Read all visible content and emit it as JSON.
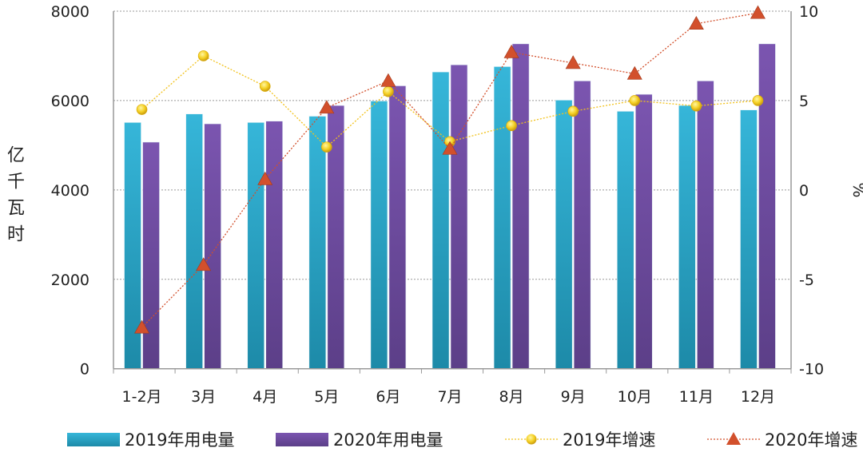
{
  "chart_data": {
    "type": "bar+line",
    "categories": [
      "1-2月",
      "3月",
      "4月",
      "5月",
      "6月",
      "7月",
      "8月",
      "9月",
      "10月",
      "11月",
      "12月"
    ],
    "ylabel": "亿千瓦时",
    "y2label": "%",
    "ylim": [
      0,
      8000
    ],
    "y2lim": [
      -10,
      10
    ],
    "yticks": [
      "0",
      "2000",
      "4000",
      "6000",
      "8000"
    ],
    "y2ticks": [
      "-10",
      "-5",
      "0",
      "5",
      "10"
    ],
    "grid": true,
    "legend_position": "bottom",
    "series": [
      {
        "name": "2019年用电量",
        "type": "bar",
        "axis": "left",
        "color": "#2aa7c9",
        "values": [
          5510,
          5700,
          5510,
          5650,
          5990,
          6640,
          6760,
          6010,
          5760,
          5890,
          5790
        ]
      },
      {
        "name": "2020年用电量",
        "type": "bar",
        "axis": "left",
        "color": "#6a4a9e",
        "values": [
          5070,
          5480,
          5540,
          5890,
          6330,
          6800,
          7270,
          6440,
          6140,
          6440,
          7270
        ]
      },
      {
        "name": "2019年增速",
        "type": "line",
        "axis": "right",
        "color": "#f2c21b",
        "marker": "circle",
        "values": [
          4.5,
          7.5,
          5.8,
          2.4,
          5.5,
          2.7,
          3.6,
          4.4,
          5.0,
          4.7,
          5.0
        ]
      },
      {
        "name": "2020年增速",
        "type": "line",
        "axis": "right",
        "color": "#d2502c",
        "marker": "triangle",
        "values": [
          -7.7,
          -4.2,
          0.6,
          4.6,
          6.1,
          2.3,
          7.7,
          7.1,
          6.5,
          9.3,
          9.9
        ]
      }
    ]
  }
}
